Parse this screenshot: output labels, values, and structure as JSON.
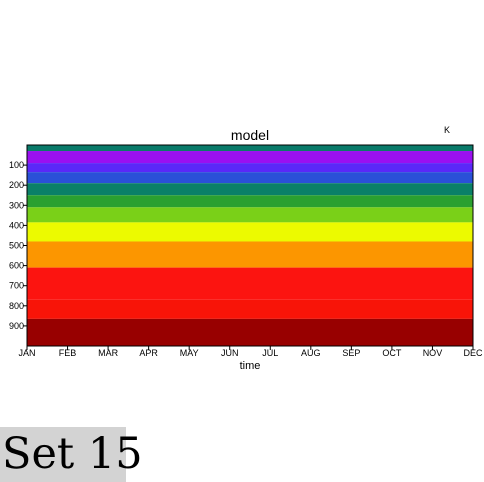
{
  "chart_data": {
    "type": "heatmap",
    "title": "model",
    "unit_label": "K",
    "xlabel": "time",
    "ylabel": "",
    "x_categories": [
      "JAN",
      "FEB",
      "MAR",
      "APR",
      "MAY",
      "JUN",
      "JUL",
      "AUG",
      "SEP",
      "OCT",
      "NOV",
      "DEC"
    ],
    "y_ticks": [
      100,
      200,
      300,
      400,
      500,
      600,
      700,
      800,
      900
    ],
    "y_range": [
      0,
      1000
    ],
    "y_inverted": true,
    "bands": [
      {
        "from": 0,
        "to": 30,
        "color": "#0a7a6a"
      },
      {
        "from": 30,
        "to": 90,
        "color": "#9a10f0"
      },
      {
        "from": 90,
        "to": 135,
        "color": "#5a28f8"
      },
      {
        "from": 135,
        "to": 190,
        "color": "#2a50d8"
      },
      {
        "from": 190,
        "to": 250,
        "color": "#0a8068"
      },
      {
        "from": 250,
        "to": 310,
        "color": "#2aa030"
      },
      {
        "from": 310,
        "to": 385,
        "color": "#7ad018"
      },
      {
        "from": 385,
        "to": 480,
        "color": "#ecfa00"
      },
      {
        "from": 480,
        "to": 610,
        "color": "#fc9600"
      },
      {
        "from": 610,
        "to": 770,
        "color": "#fc1410"
      },
      {
        "from": 770,
        "to": 865,
        "color": "#f81408"
      },
      {
        "from": 865,
        "to": 1000,
        "color": "#980000"
      }
    ]
  },
  "footer": {
    "set_label": "Set 15"
  }
}
